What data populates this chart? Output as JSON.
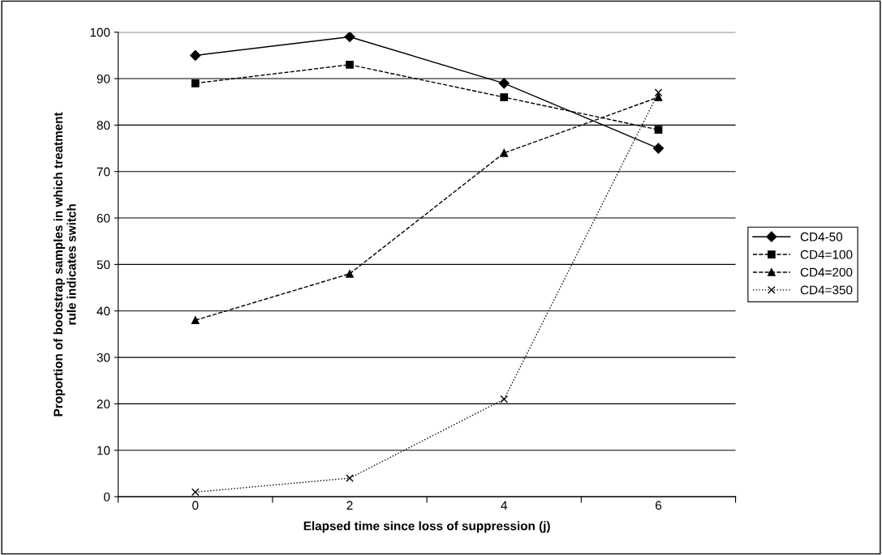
{
  "chart_data": {
    "type": "line",
    "xlabel": "Elapsed time since loss of suppression (j)",
    "ylabel": "Proportion of bootstrap samples in which treatment\nrule indicates switch",
    "categories": [
      "0",
      "2",
      "4",
      "6"
    ],
    "ylim": [
      0,
      100
    ],
    "yticks": [
      0,
      10,
      20,
      30,
      40,
      50,
      60,
      70,
      80,
      90,
      100
    ],
    "grid": "y",
    "legend": "right",
    "series": [
      {
        "name": "CD4-50",
        "color": "#000000",
        "values": [
          95,
          99,
          89,
          75
        ],
        "marker": "diamond",
        "line_style": "solid"
      },
      {
        "name": "CD4=100",
        "color": "#000000",
        "values": [
          89,
          93,
          86,
          79
        ],
        "marker": "square",
        "line_style": "dashed"
      },
      {
        "name": "CD4=200",
        "color": "#000000",
        "values": [
          38,
          48,
          74,
          86
        ],
        "marker": "triangle",
        "line_style": "dashed"
      },
      {
        "name": "CD4=350",
        "color": "#000000",
        "values": [
          1,
          4,
          21,
          87
        ],
        "marker": "cross",
        "line_style": "dotted"
      }
    ]
  }
}
